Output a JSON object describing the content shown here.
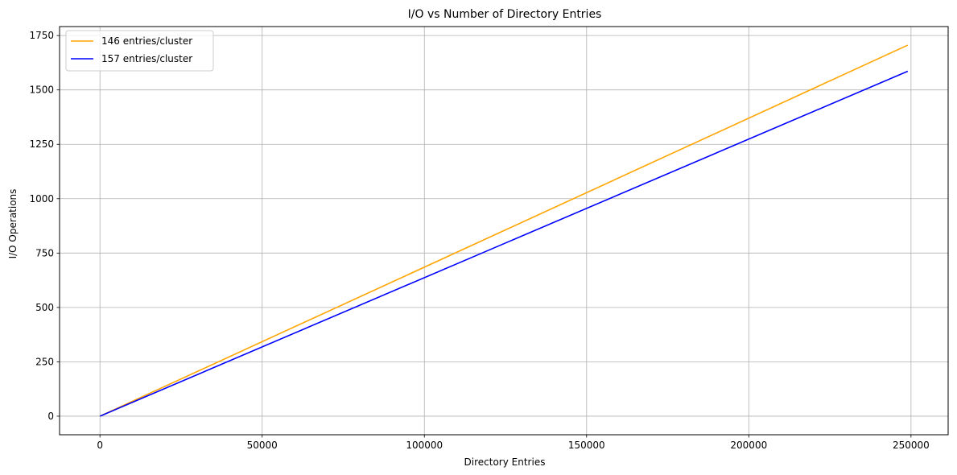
{
  "chart_data": {
    "type": "line",
    "title": "I/O vs Number of Directory Entries",
    "xlabel": "Directory Entries",
    "ylabel": "I/O Operations",
    "xlim": [
      -12450,
      261450
    ],
    "ylim": [
      -85.3,
      1791.3
    ],
    "xticks": [
      0,
      50000,
      100000,
      150000,
      200000,
      250000
    ],
    "xtick_labels": [
      "0",
      "50000",
      "100000",
      "150000",
      "200000",
      "250000"
    ],
    "yticks": [
      0,
      250,
      500,
      750,
      1000,
      1250,
      1500,
      1750
    ],
    "ytick_labels": [
      "0",
      "250",
      "500",
      "750",
      "1000",
      "1250",
      "1500",
      "1750"
    ],
    "grid": true,
    "legend_position": "top-left",
    "series": [
      {
        "name": "146 entries/cluster",
        "color": "#ffa500",
        "x": [
          0,
          249000
        ],
        "y": [
          0,
          1706
        ]
      },
      {
        "name": "157 entries/cluster",
        "color": "#0000ff",
        "x": [
          0,
          249000
        ],
        "y": [
          0,
          1586
        ]
      }
    ]
  }
}
